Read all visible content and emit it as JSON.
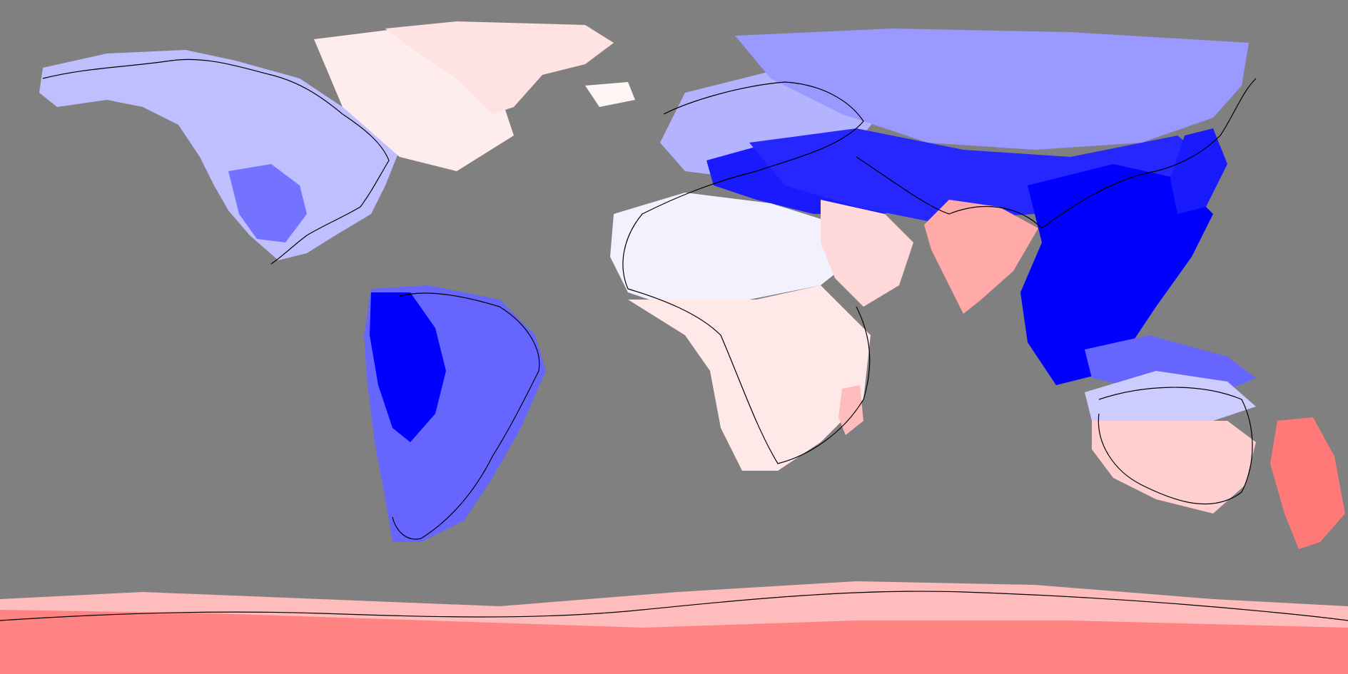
{
  "map": {
    "projection": "equirectangular",
    "background_color": "#808080",
    "coastline_color": "#000000",
    "colorscale": {
      "type": "diverging",
      "negative_color": "#0000ff",
      "neutral_color": "#ffffff",
      "positive_color": "#ff4040"
    },
    "regions": [
      {
        "name": "north-america",
        "value": -0.25
      },
      {
        "name": "mexico-gulf",
        "value": -0.55
      },
      {
        "name": "canada-east",
        "value": 0.1
      },
      {
        "name": "greenland",
        "value": 0.15
      },
      {
        "name": "iceland",
        "value": 0.05
      },
      {
        "name": "south-america",
        "value": -0.6
      },
      {
        "name": "amazon-core",
        "value": -1.0
      },
      {
        "name": "europe",
        "value": -0.3
      },
      {
        "name": "mediterranean-turkey",
        "value": -0.9
      },
      {
        "name": "russia-siberia",
        "value": -0.4
      },
      {
        "name": "central-asia-band",
        "value": -0.85
      },
      {
        "name": "north-africa",
        "value": -0.05
      },
      {
        "name": "sub-saharan-africa",
        "value": 0.12
      },
      {
        "name": "arabia",
        "value": 0.2
      },
      {
        "name": "madagascar",
        "value": 0.35
      },
      {
        "name": "india",
        "value": 0.45
      },
      {
        "name": "southeast-asia-china",
        "value": -1.0
      },
      {
        "name": "japan",
        "value": -0.9
      },
      {
        "name": "indonesia",
        "value": -0.6
      },
      {
        "name": "australia-north",
        "value": -0.2
      },
      {
        "name": "australia-south",
        "value": 0.25
      },
      {
        "name": "new-zealand",
        "value": 0.7
      },
      {
        "name": "antarctica-band",
        "value": 0.35
      },
      {
        "name": "antarctica-coast",
        "value": 0.65
      }
    ]
  }
}
